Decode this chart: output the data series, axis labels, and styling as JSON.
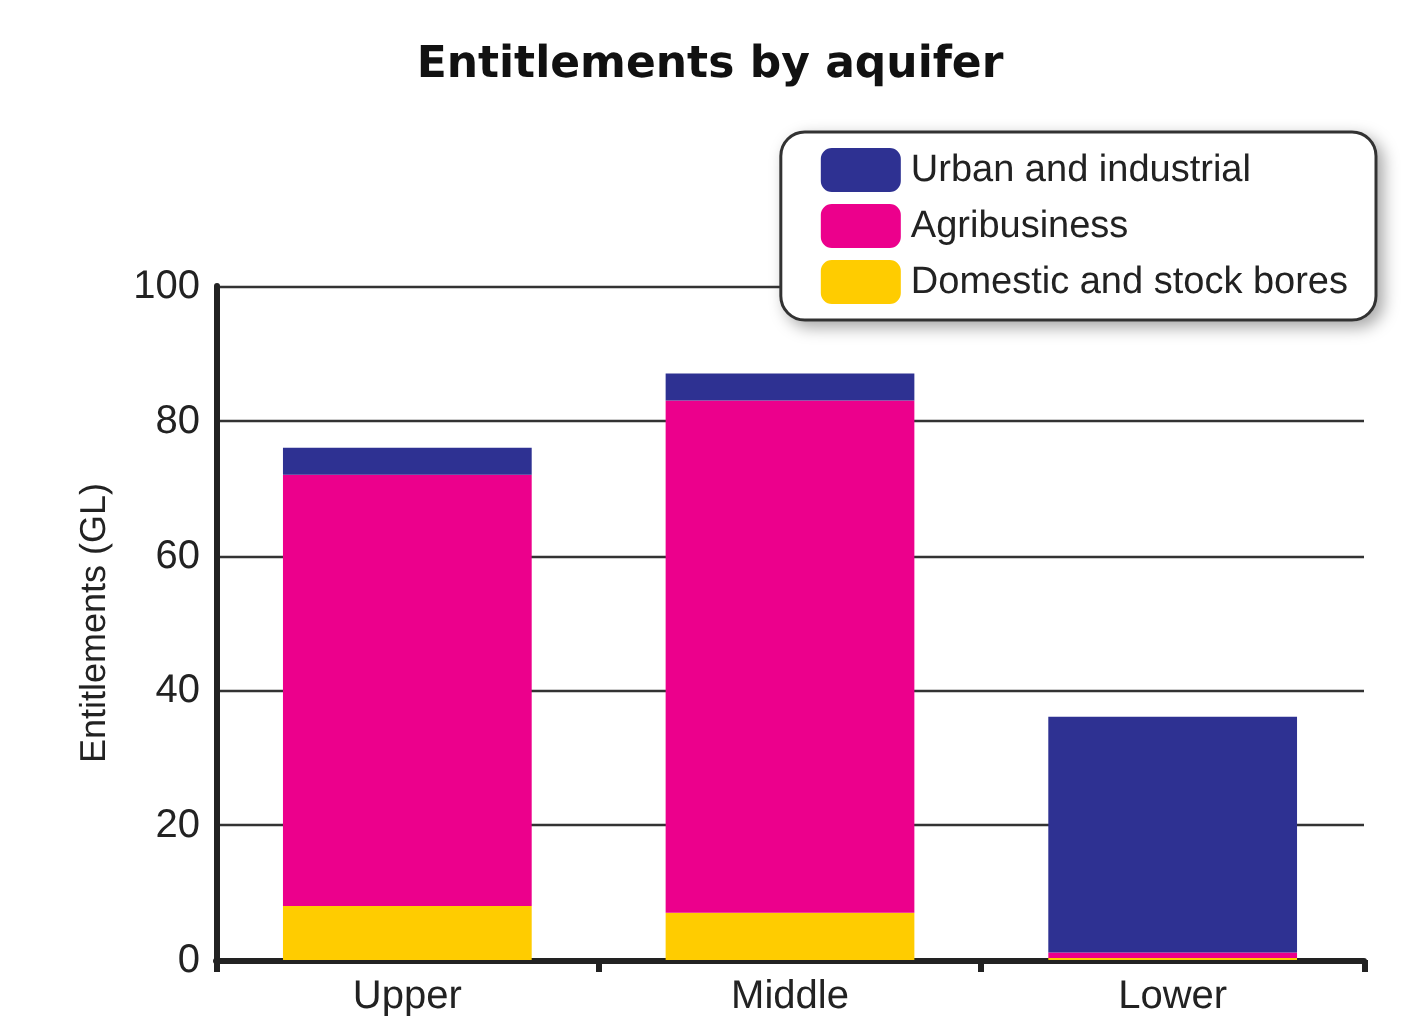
{
  "chart_data": {
    "type": "bar",
    "title": "Entitlements by aquifer",
    "ylabel": "Entitlements (GL)",
    "categories": [
      "Upper",
      "Middle",
      "Lower"
    ],
    "stacked": true,
    "series": [
      {
        "name": "Domestic and stock bores",
        "color": "#ffcc00",
        "values": [
          8,
          7,
          0.3
        ]
      },
      {
        "name": "Agribusiness",
        "color": "#ec008c",
        "values": [
          64,
          76,
          0.8
        ]
      },
      {
        "name": "Urban and industrial",
        "color": "#2e3192",
        "values": [
          4,
          4,
          35
        ]
      }
    ],
    "ylim": [
      0,
      100
    ],
    "yticks": [
      0,
      20,
      40,
      60,
      80,
      100
    ],
    "grid": "y",
    "legend": "top right"
  }
}
